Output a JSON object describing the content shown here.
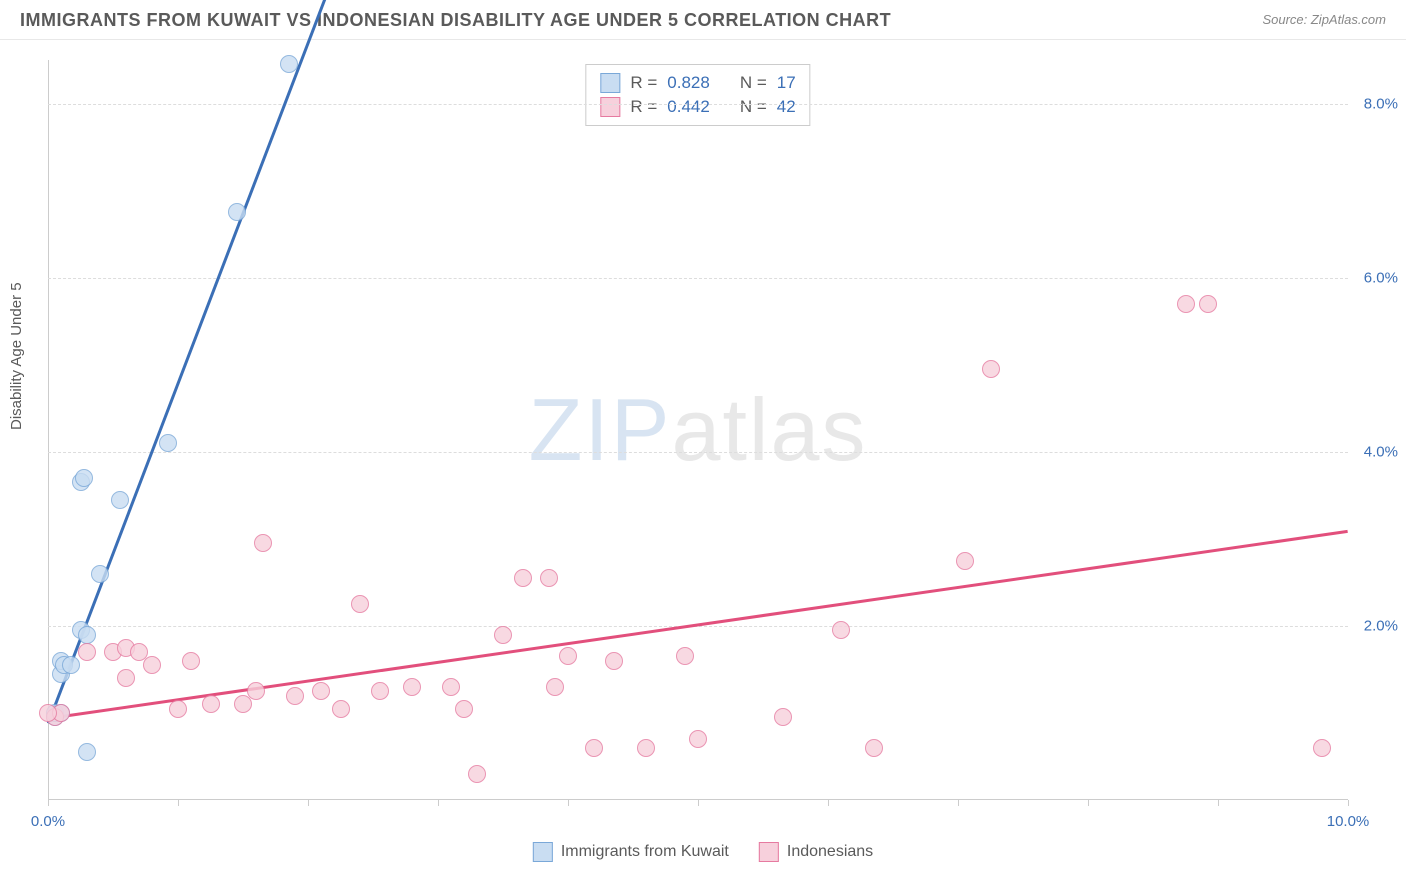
{
  "title": "IMMIGRANTS FROM KUWAIT VS INDONESIAN DISABILITY AGE UNDER 5 CORRELATION CHART",
  "source_label": "Source: ",
  "source_name": "ZipAtlas.com",
  "y_axis_label": "Disability Age Under 5",
  "watermark": {
    "part1": "ZIP",
    "part2": "atlas"
  },
  "chart": {
    "type": "scatter",
    "xlim": [
      0,
      10
    ],
    "ylim": [
      0,
      8.5
    ],
    "y_ticks": [
      2,
      4,
      6,
      8
    ],
    "y_tick_labels": [
      "2.0%",
      "4.0%",
      "6.0%",
      "8.0%"
    ],
    "x_ticks": [
      0,
      1,
      2,
      3,
      4,
      5,
      6,
      7,
      8,
      9,
      10
    ],
    "x_tick_labels_shown": {
      "0": "0.0%",
      "10": "10.0%"
    },
    "grid_color": "#dddddd",
    "axis_color": "#cccccc",
    "background": "#ffffff",
    "tick_label_color": "#3b6fb6",
    "series": [
      {
        "name": "Immigrants from Kuwait",
        "marker_fill": "#c9ddf2",
        "marker_stroke": "#7aa8d8",
        "marker_opacity": 0.8,
        "line_color": "#3b6fb6",
        "R": 0.828,
        "N": 17,
        "trend": {
          "x1": 0.0,
          "y1": 0.9,
          "x2": 2.2,
          "y2": 9.5
        },
        "points": [
          [
            0.05,
            0.95
          ],
          [
            0.05,
            1.0
          ],
          [
            0.1,
            1.45
          ],
          [
            0.1,
            1.6
          ],
          [
            0.12,
            1.55
          ],
          [
            0.18,
            1.55
          ],
          [
            0.25,
            1.95
          ],
          [
            0.3,
            0.55
          ],
          [
            0.3,
            1.9
          ],
          [
            0.4,
            2.6
          ],
          [
            0.55,
            3.45
          ],
          [
            0.25,
            3.65
          ],
          [
            0.28,
            3.7
          ],
          [
            0.92,
            4.1
          ],
          [
            1.45,
            6.75
          ],
          [
            1.85,
            8.45
          ],
          [
            0.1,
            1.0
          ]
        ]
      },
      {
        "name": "Indonesians",
        "marker_fill": "#f7d0dc",
        "marker_stroke": "#e67aa0",
        "marker_opacity": 0.8,
        "line_color": "#e24f7c",
        "R": 0.442,
        "N": 42,
        "trend": {
          "x1": 0.0,
          "y1": 0.95,
          "x2": 10.0,
          "y2": 3.1
        },
        "points": [
          [
            0.05,
            0.95
          ],
          [
            0.1,
            1.0
          ],
          [
            0.3,
            1.7
          ],
          [
            0.5,
            1.7
          ],
          [
            0.6,
            1.75
          ],
          [
            0.6,
            1.4
          ],
          [
            0.7,
            1.7
          ],
          [
            0.8,
            1.55
          ],
          [
            1.0,
            1.05
          ],
          [
            1.1,
            1.6
          ],
          [
            1.25,
            1.1
          ],
          [
            1.5,
            1.1
          ],
          [
            1.6,
            1.25
          ],
          [
            1.65,
            2.95
          ],
          [
            1.9,
            1.2
          ],
          [
            2.1,
            1.25
          ],
          [
            2.25,
            1.05
          ],
          [
            2.4,
            2.25
          ],
          [
            2.55,
            1.25
          ],
          [
            2.8,
            1.3
          ],
          [
            3.1,
            1.3
          ],
          [
            3.2,
            1.05
          ],
          [
            3.3,
            0.3
          ],
          [
            3.5,
            1.9
          ],
          [
            3.65,
            2.55
          ],
          [
            3.85,
            2.55
          ],
          [
            3.9,
            1.3
          ],
          [
            4.0,
            1.65
          ],
          [
            4.2,
            0.6
          ],
          [
            4.35,
            1.6
          ],
          [
            4.6,
            0.6
          ],
          [
            4.9,
            1.65
          ],
          [
            5.0,
            0.7
          ],
          [
            5.65,
            0.95
          ],
          [
            6.1,
            1.95
          ],
          [
            6.35,
            0.6
          ],
          [
            7.05,
            2.75
          ],
          [
            7.25,
            4.95
          ],
          [
            8.75,
            5.7
          ],
          [
            8.92,
            5.7
          ],
          [
            9.8,
            0.6
          ],
          [
            0.0,
            1.0
          ]
        ]
      }
    ]
  },
  "stats_box": {
    "rows": [
      {
        "swatch_fill": "#c9ddf2",
        "swatch_stroke": "#7aa8d8",
        "r_label": "R =",
        "r_val": "0.828",
        "n_label": "N =",
        "n_val": "17"
      },
      {
        "swatch_fill": "#f7d0dc",
        "swatch_stroke": "#e67aa0",
        "r_label": "R =",
        "r_val": "0.442",
        "n_label": "N =",
        "n_val": "42"
      }
    ]
  },
  "bottom_legend": [
    {
      "swatch_fill": "#c9ddf2",
      "swatch_stroke": "#7aa8d8",
      "label": "Immigrants from Kuwait"
    },
    {
      "swatch_fill": "#f7d0dc",
      "swatch_stroke": "#e67aa0",
      "label": "Indonesians"
    }
  ]
}
